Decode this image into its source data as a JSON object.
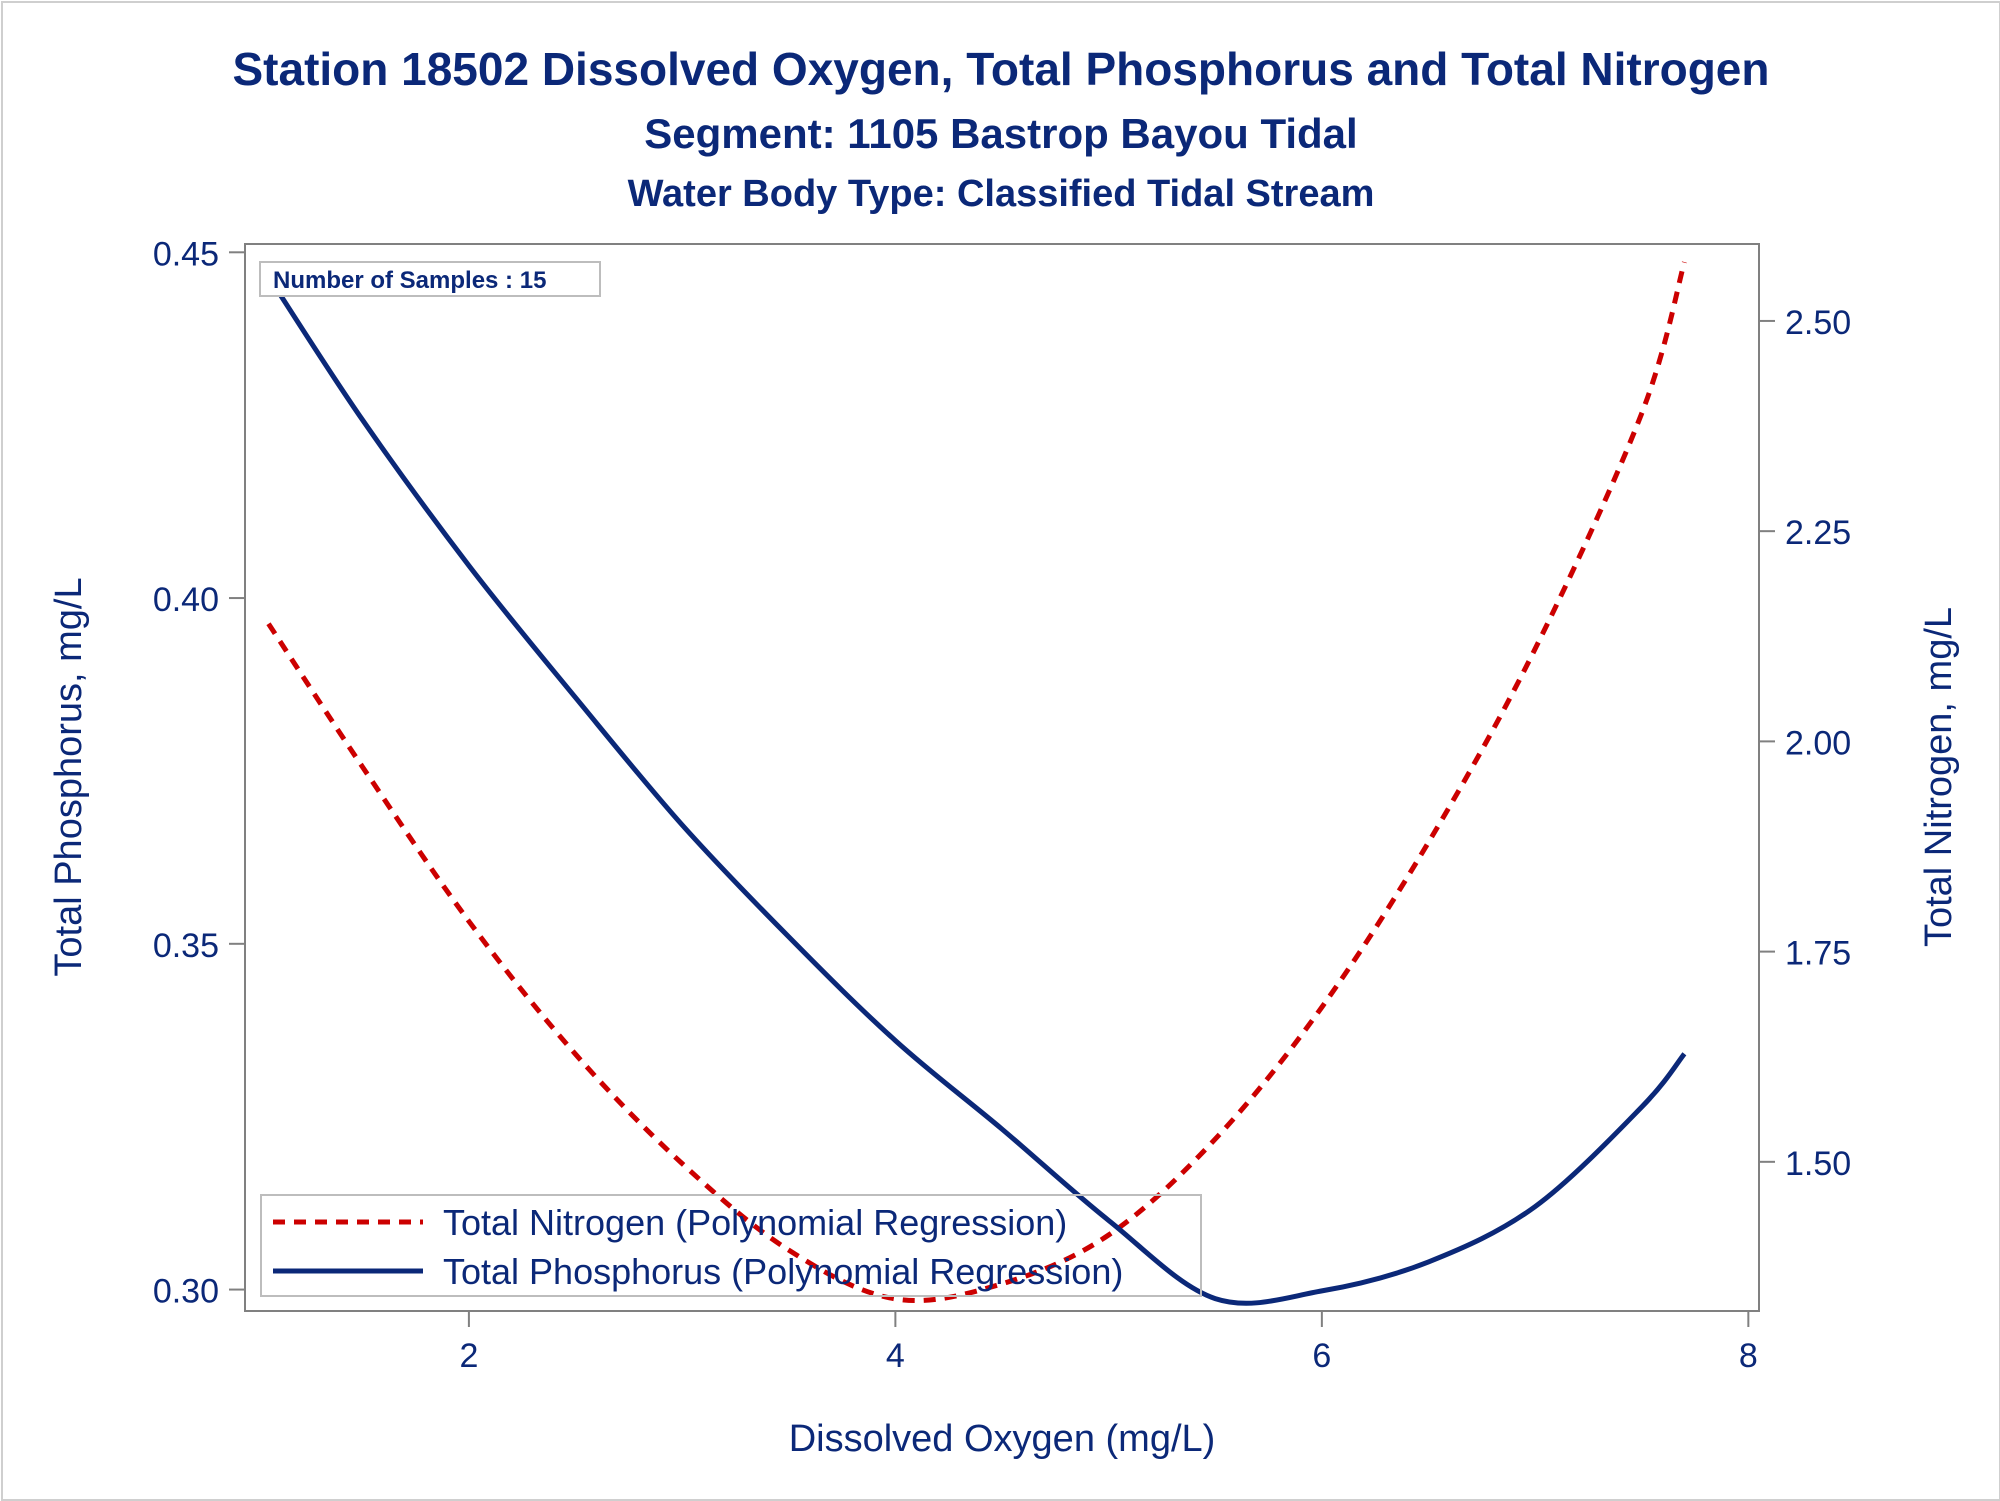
{
  "chart_data": {
    "type": "line",
    "title": "Station 18502  Dissolved Oxygen, Total Phosphorus and Total Nitrogen",
    "subtitle": "Segment: 1105  Bastrop Bayou Tidal",
    "subtitle2": "Water Body Type: Classified Tidal Stream",
    "annotation": "Number of Samples : 15",
    "xlabel": "Dissolved Oxygen (mg/L)",
    "ylabel_left": "Total Phosphorus, mg/L",
    "ylabel_right": "Total Nitrogen, mg/L",
    "xlim": [
      0.95,
      8.05
    ],
    "ylim_left": [
      0.2969,
      0.4512
    ],
    "ylim_right": [
      1.3226,
      2.5915
    ],
    "xticks": [
      2,
      4,
      6,
      8
    ],
    "xtick_labels": [
      "2",
      "4",
      "6",
      "8"
    ],
    "yticks_left": [
      0.3,
      0.35,
      0.4,
      0.45
    ],
    "ytick_labels_left": [
      "0.30",
      "0.35",
      "0.40",
      "0.45"
    ],
    "yticks_right": [
      1.5,
      1.75,
      2.0,
      2.25,
      2.5
    ],
    "ytick_labels_right": [
      "1.50",
      "1.75",
      "2.00",
      "2.25",
      "2.50"
    ],
    "grid": false,
    "legend_position": "bottom-left inside",
    "series": [
      {
        "name": "Total Nitrogen (Polynomial Regression)",
        "axis": "right",
        "style": "dashed",
        "color": "#cc0000",
        "x": [
          1.06,
          1.5,
          2.0,
          2.5,
          3.0,
          3.5,
          4.0,
          4.5,
          5.0,
          5.5,
          6.0,
          6.5,
          7.0,
          7.5,
          7.7
        ],
        "y": [
          2.14,
          1.97,
          1.786,
          1.628,
          1.498,
          1.395,
          1.337,
          1.355,
          1.413,
          1.527,
          1.684,
          1.88,
          2.11,
          2.39,
          2.57
        ]
      },
      {
        "name": "Total Phosphorus (Polynomial Regression)",
        "axis": "left",
        "style": "solid",
        "color": "#0b2878",
        "x": [
          1.06,
          1.5,
          2.0,
          2.5,
          3.0,
          3.5,
          4.0,
          4.5,
          5.0,
          5.5,
          6.0,
          6.5,
          7.0,
          7.5,
          7.7
        ],
        "y": [
          0.4465,
          0.4258,
          0.4047,
          0.3856,
          0.3672,
          0.351,
          0.336,
          0.3232,
          0.31,
          0.2987,
          0.2998,
          0.304,
          0.312,
          0.3264,
          0.3341
        ]
      }
    ]
  },
  "colors": {
    "text": "#0b2878",
    "nitrogen": "#cc0000",
    "phosphorus": "#0b2878",
    "axis": "#808080"
  }
}
